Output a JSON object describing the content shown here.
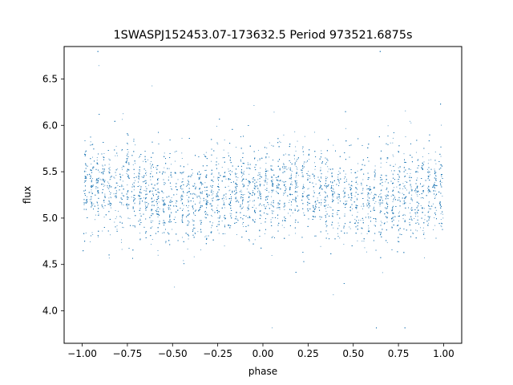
{
  "chart_data": {
    "type": "scatter",
    "title": "1SWASPJ152453.07-173632.5 Period 973521.6875s",
    "xlabel": "phase",
    "ylabel": "flux",
    "xlim": [
      -1.1,
      1.1
    ],
    "ylim": [
      3.65,
      6.85
    ],
    "x_ticks": [
      -1.0,
      -0.75,
      -0.5,
      -0.25,
      0.0,
      0.25,
      0.5,
      0.75,
      1.0
    ],
    "x_tick_labels": [
      "−1.00",
      "−0.75",
      "−0.50",
      "−0.25",
      "0.00",
      "0.25",
      "0.50",
      "0.75",
      "1.00"
    ],
    "y_ticks": [
      4.0,
      4.5,
      5.0,
      5.5,
      6.0,
      6.5
    ],
    "y_tick_labels": [
      "4.0",
      "4.5",
      "5.0",
      "5.5",
      "6.0",
      "6.5"
    ],
    "grid": false,
    "legend": "none",
    "marker_color": "#1f77b4",
    "series": [
      {
        "phase_range": [
          -1.0,
          1.0
        ],
        "flux_mean": 5.27,
        "flux_core_range": [
          4.6,
          6.0
        ],
        "flux_min": 3.82,
        "flux_max": 6.8,
        "approx_points": 22000,
        "note_points": "dense light curve folded at the period, phase -1 to 1"
      }
    ]
  }
}
